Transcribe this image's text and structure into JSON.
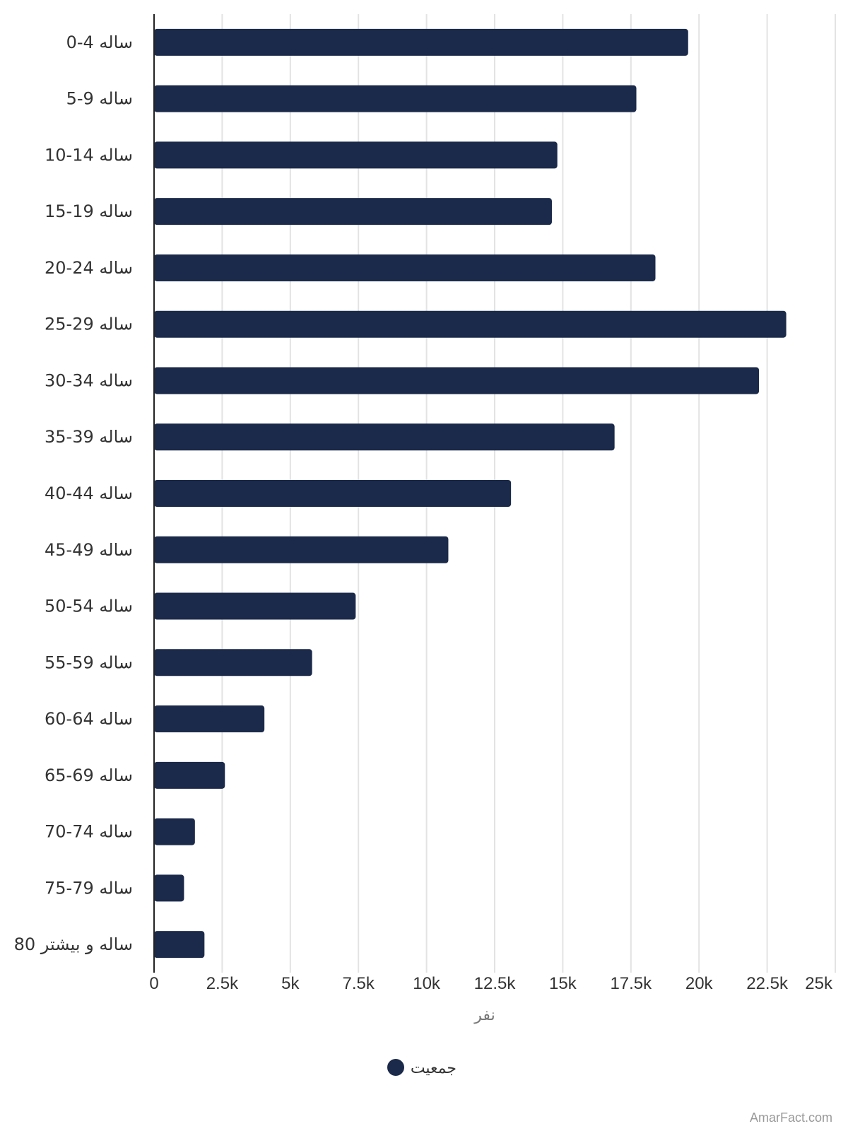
{
  "chart_data": {
    "type": "bar",
    "orientation": "horizontal",
    "categories": [
      "0-4 ساله",
      "5-9 ساله",
      "10-14 ساله",
      "15-19 ساله",
      "20-24 ساله",
      "25-29 ساله",
      "30-34 ساله",
      "35-39 ساله",
      "40-44 ساله",
      "45-49 ساله",
      "50-54 ساله",
      "55-59 ساله",
      "60-64 ساله",
      "65-69 ساله",
      "70-74 ساله",
      "75-79 ساله",
      "80 ساله و بیشتر"
    ],
    "series": [
      {
        "name": "جمعیت",
        "color": "#1b2a4a",
        "values": [
          19600,
          17700,
          14800,
          14600,
          18400,
          23200,
          22200,
          16900,
          13100,
          10800,
          7400,
          5800,
          4050,
          2600,
          1500,
          1100,
          1850
        ]
      }
    ],
    "xlabel": "نفر",
    "xlim": [
      0,
      25000
    ],
    "xticks": [
      0,
      2500,
      5000,
      7500,
      10000,
      12500,
      15000,
      17500,
      20000,
      22500,
      25000
    ],
    "xtick_labels": [
      "0",
      "2.5k",
      "5k",
      "7.5k",
      "10k",
      "12.5k",
      "15k",
      "17.5k",
      "20k",
      "22.5k",
      "25k"
    ],
    "grid": "vertical",
    "legend": "bottom-center"
  },
  "watermark": "AmarFact.com"
}
